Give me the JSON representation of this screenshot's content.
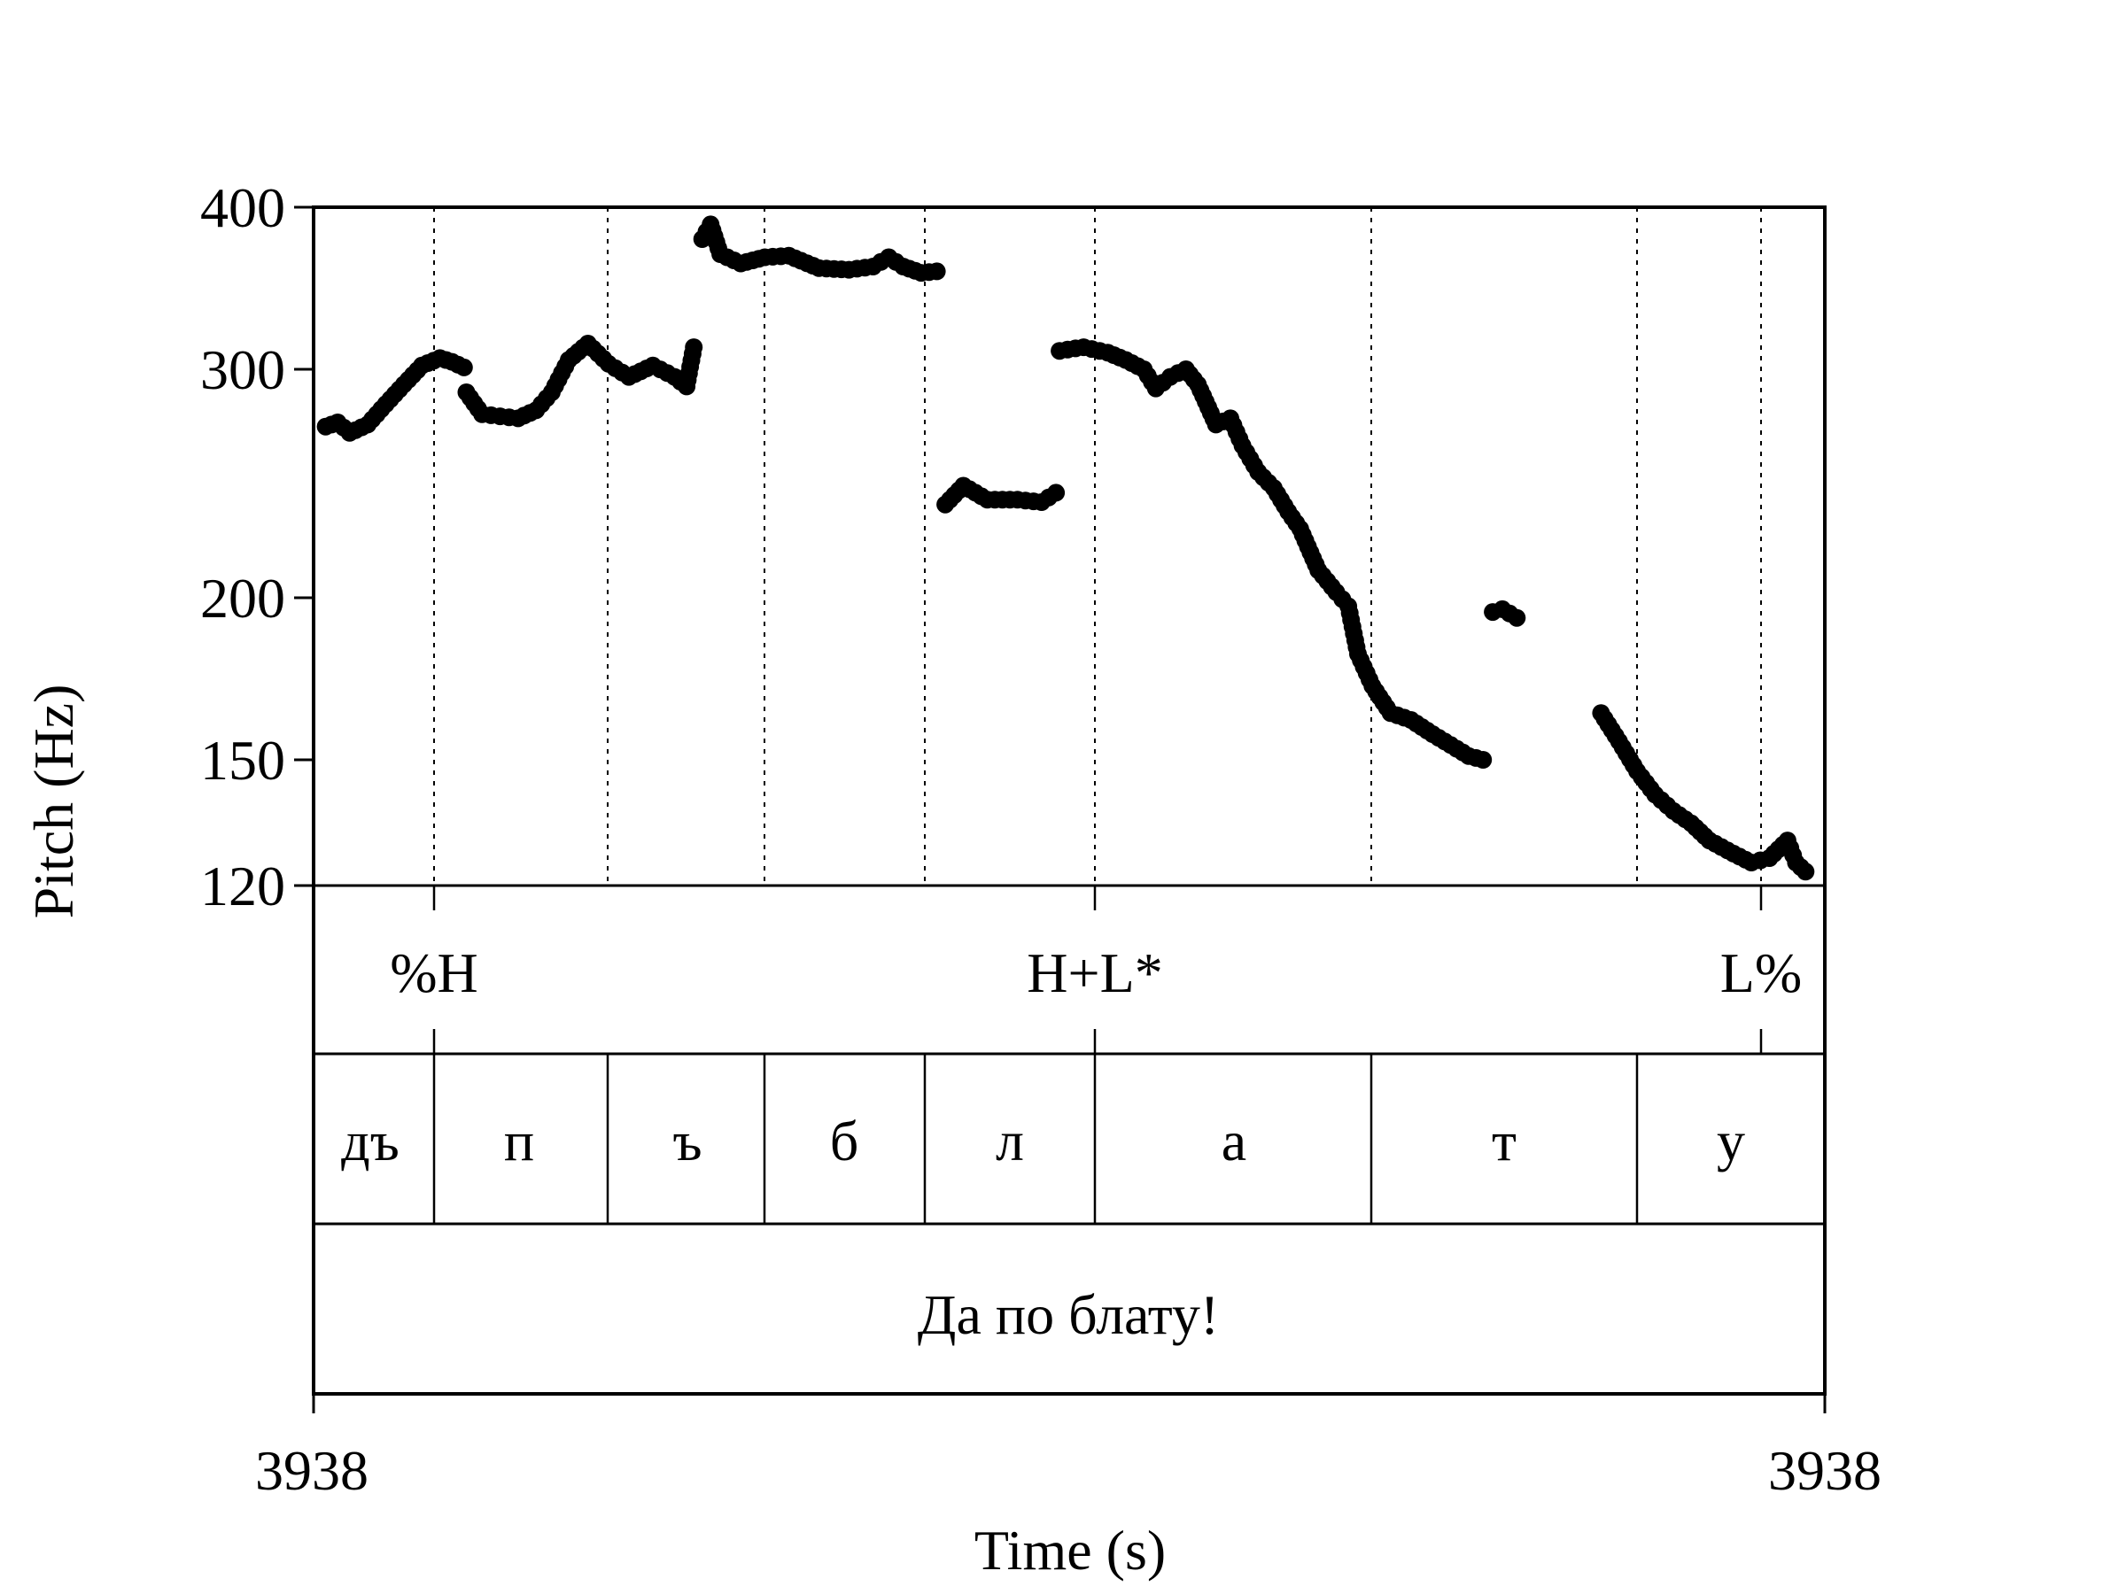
{
  "chart_data": {
    "type": "scatter",
    "title": "",
    "xlabel": "Time (s)",
    "ylabel": "Pitch (Hz)",
    "ylim": [
      120,
      400
    ],
    "y_scale": "log",
    "y_ticks": [
      120,
      150,
      200,
      300,
      400
    ],
    "y_tick_labels": [
      "120",
      "150",
      "200",
      "300",
      "400"
    ],
    "x_tick_labels": [
      "3938",
      "3938"
    ],
    "grid": false,
    "legend": "none",
    "point_color": "#000000",
    "tiers": {
      "tones": [
        {
          "label": "%H"
        },
        {
          "label": "H+L*"
        },
        {
          "label": "L%"
        }
      ],
      "segments": [
        {
          "label": "дъ"
        },
        {
          "label": "п"
        },
        {
          "label": "ъ"
        },
        {
          "label": "б"
        },
        {
          "label": "л"
        },
        {
          "label": "а"
        },
        {
          "label": "т"
        },
        {
          "label": "у"
        }
      ],
      "sentence": "Да по блату!"
    },
    "series": [
      {
        "segments": [
          {
            "points": [
              [
                0.01,
                271
              ],
              [
                0.02,
                273
              ],
              [
                0.03,
                268
              ],
              [
                0.045,
                272
              ],
              [
                0.06,
                282
              ],
              [
                0.075,
                292
              ],
              [
                0.09,
                302
              ],
              [
                0.105,
                306
              ],
              [
                0.115,
                304
              ],
              [
                0.125,
                301
              ]
            ]
          },
          {
            "points": [
              [
                0.127,
                288
              ],
              [
                0.14,
                277
              ],
              [
                0.155,
                276
              ],
              [
                0.17,
                275
              ],
              [
                0.185,
                279
              ],
              [
                0.198,
                288
              ],
              [
                0.212,
                305
              ],
              [
                0.228,
                314
              ],
              [
                0.245,
                303
              ],
              [
                0.262,
                296
              ],
              [
                0.282,
                302
              ],
              [
                0.3,
                296
              ],
              [
                0.31,
                291
              ],
              [
                0.316,
                312
              ]
            ]
          },
          {
            "points": [
              [
                0.323,
                378
              ],
              [
                0.33,
                388
              ],
              [
                0.338,
                368
              ],
              [
                0.355,
                362
              ],
              [
                0.375,
                366
              ],
              [
                0.395,
                367
              ],
              [
                0.42,
                359
              ],
              [
                0.445,
                358
              ],
              [
                0.465,
                360
              ],
              [
                0.478,
                366
              ],
              [
                0.49,
                360
              ],
              [
                0.505,
                356
              ],
              [
                0.518,
                357
              ]
            ]
          },
          {
            "points": [
              [
                0.525,
                236
              ],
              [
                0.54,
                244
              ],
              [
                0.56,
                238
              ],
              [
                0.585,
                238
              ],
              [
                0.605,
                237
              ],
              [
                0.617,
                241
              ]
            ]
          },
          {
            "points": [
              [
                0.62,
                310
              ],
              [
                0.64,
                312
              ],
              [
                0.66,
                309
              ],
              [
                0.675,
                305
              ],
              [
                0.69,
                300
              ],
              [
                0.7,
                290
              ],
              [
                0.712,
                296
              ],
              [
                0.725,
                300
              ],
              [
                0.735,
                292
              ],
              [
                0.75,
                272
              ],
              [
                0.762,
                275
              ],
              [
                0.772,
                262
              ],
              [
                0.785,
                250
              ],
              [
                0.798,
                243
              ],
              [
                0.81,
                233
              ],
              [
                0.82,
                226
              ],
              [
                0.835,
                210
              ],
              [
                0.85,
                202
              ],
              [
                0.86,
                197
              ],
              [
                0.868,
                181
              ],
              [
                0.88,
                171
              ],
              [
                0.895,
                163
              ],
              [
                0.912,
                161
              ],
              [
                0.93,
                157
              ],
              [
                0.945,
                154
              ],
              [
                0.96,
                151
              ],
              [
                0.972,
                150
              ]
            ]
          },
          {
            "points": [
              [
                0.98,
                195
              ],
              [
                0.988,
                196
              ],
              [
                1.0,
                193
              ]
            ]
          },
          {
            "points": [
              [
                1.07,
                163
              ],
              [
                1.085,
                155
              ],
              [
                1.1,
                147
              ],
              [
                1.115,
                141
              ],
              [
                1.13,
                137
              ],
              [
                1.145,
                134
              ],
              [
                1.16,
                130
              ],
              [
                1.18,
                127
              ],
              [
                1.195,
                125
              ],
              [
                1.21,
                126
              ],
              [
                1.225,
                130
              ],
              [
                1.232,
                125
              ],
              [
                1.24,
                123
              ]
            ]
          }
        ]
      }
    ]
  }
}
